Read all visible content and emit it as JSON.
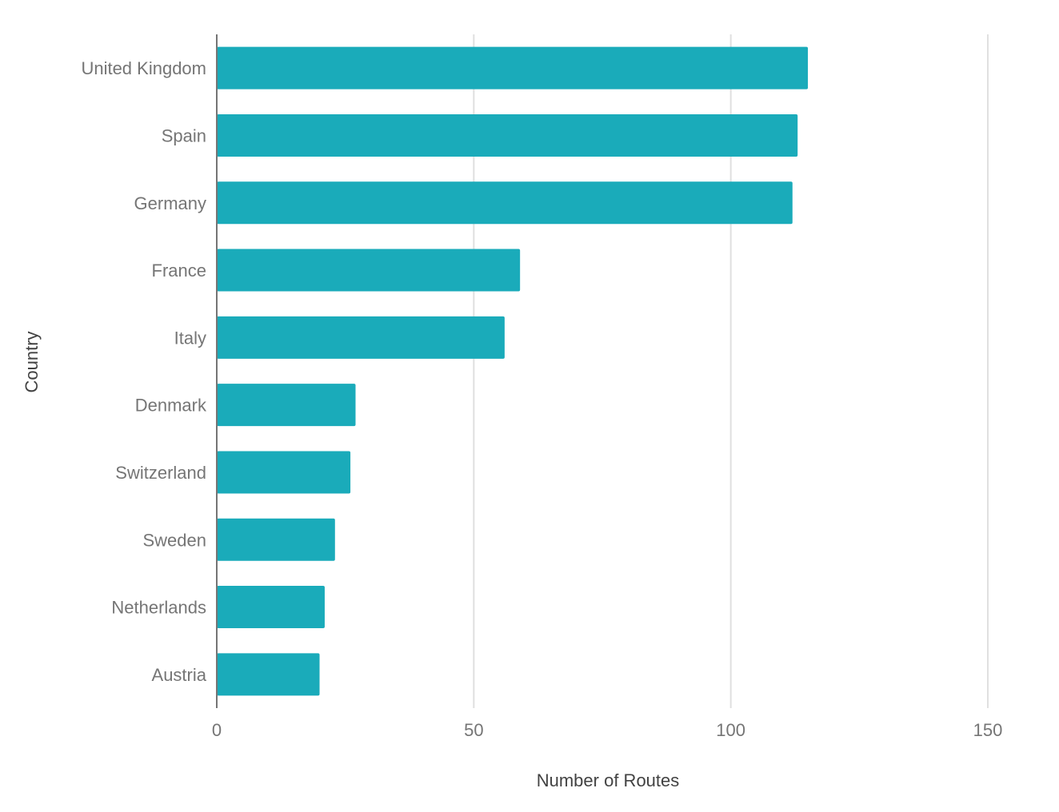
{
  "chart_data": {
    "type": "bar",
    "orientation": "horizontal",
    "categories": [
      "United Kingdom",
      "Spain",
      "Germany",
      "France",
      "Italy",
      "Denmark",
      "Switzerland",
      "Sweden",
      "Netherlands",
      "Austria"
    ],
    "values": [
      115,
      113,
      112,
      59,
      56,
      27,
      26,
      23,
      21,
      20
    ],
    "xlabel": "Number of Routes",
    "ylabel": "Country",
    "xlim": [
      0,
      150
    ],
    "xticks": [
      "0",
      "50",
      "100",
      "150"
    ],
    "grid": true,
    "bar_color": "#1aabba"
  }
}
